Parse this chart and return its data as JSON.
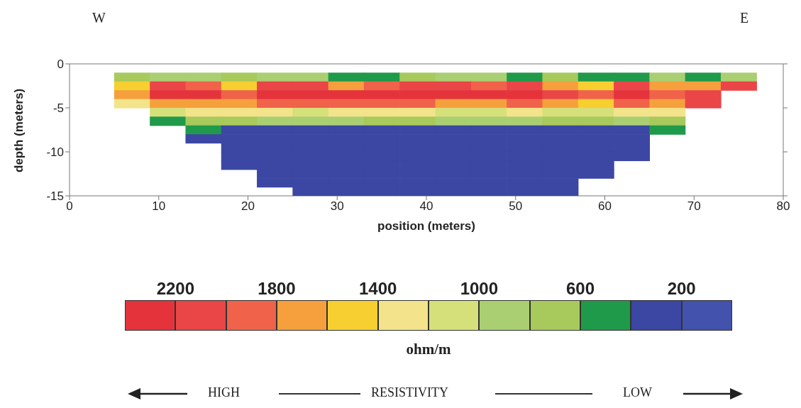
{
  "chart_data": {
    "type": "heatmap",
    "xlabel": "position (meters)",
    "ylabel": "depth (meters)",
    "clabel": "ohm/m",
    "annotations": [
      "W",
      "E",
      "HIGH",
      "RESISTIVITY",
      "LOW"
    ],
    "x": [
      7,
      11,
      15,
      19,
      23,
      27,
      31,
      35,
      39,
      43,
      47,
      51,
      55,
      59,
      63,
      67,
      71,
      75
    ],
    "y": [
      -1.5,
      -2.5,
      -3.5,
      -4.5,
      -5.5,
      -6.5,
      -7.5,
      -8.5,
      -9.5,
      -10.5,
      -11.5,
      -12.5,
      -13.5,
      -14.5
    ],
    "xlim": [
      0,
      80
    ],
    "xticks": [
      0,
      10,
      20,
      30,
      40,
      50,
      60,
      70,
      80
    ],
    "ylim": [
      -15,
      0
    ],
    "yticks": [
      0,
      -5,
      -10,
      -15
    ],
    "clim": [
      2400,
      0
    ],
    "cticks": [
      2200,
      1800,
      1400,
      1000,
      600,
      200
    ],
    "colors": [
      "#e5333c",
      "#ea4547",
      "#f0624a",
      "#f5a03c",
      "#f7cf30",
      "#f3e38a",
      "#d6e07a",
      "#a9cf72",
      "#a8c95c",
      "#1f9a4a",
      "#3b47a3",
      "#4252ad"
    ],
    "cells": [
      [
        700,
        900,
        900,
        700,
        900,
        900,
        500,
        500,
        700,
        900,
        900,
        500,
        700,
        500,
        500,
        900,
        500,
        900
      ],
      [
        1500,
        2100,
        1900,
        1500,
        2100,
        2100,
        1700,
        1900,
        2100,
        2100,
        1900,
        2100,
        1700,
        1500,
        2100,
        1700,
        1700,
        2100
      ],
      [
        1700,
        2300,
        2300,
        1900,
        2300,
        2300,
        2300,
        2300,
        2300,
        2300,
        2300,
        2300,
        2100,
        1900,
        2300,
        1900,
        2100,
        null
      ],
      [
        1300,
        1700,
        1700,
        1700,
        1900,
        1900,
        1900,
        1900,
        1900,
        1700,
        1700,
        1900,
        1700,
        1500,
        1900,
        1700,
        2100,
        null
      ],
      [
        null,
        1100,
        1300,
        1300,
        1300,
        1100,
        1300,
        1300,
        1300,
        1100,
        1100,
        1300,
        1100,
        1100,
        1300,
        1300,
        null,
        null
      ],
      [
        null,
        500,
        700,
        700,
        900,
        900,
        900,
        700,
        700,
        900,
        900,
        900,
        700,
        700,
        900,
        700,
        null,
        null
      ],
      [
        null,
        null,
        500,
        300,
        300,
        300,
        300,
        300,
        300,
        300,
        300,
        300,
        300,
        300,
        300,
        500,
        null,
        null
      ],
      [
        null,
        null,
        300,
        300,
        300,
        300,
        300,
        300,
        300,
        300,
        300,
        300,
        300,
        300,
        300,
        null,
        null,
        null
      ],
      [
        null,
        null,
        null,
        300,
        300,
        300,
        300,
        300,
        300,
        300,
        300,
        300,
        300,
        300,
        300,
        null,
        null,
        null
      ],
      [
        null,
        null,
        null,
        300,
        300,
        300,
        300,
        300,
        300,
        300,
        300,
        300,
        300,
        300,
        300,
        null,
        null,
        null
      ],
      [
        null,
        null,
        null,
        300,
        300,
        300,
        300,
        300,
        300,
        300,
        300,
        300,
        300,
        300,
        null,
        null,
        null,
        null
      ],
      [
        null,
        null,
        null,
        null,
        300,
        300,
        300,
        300,
        300,
        300,
        300,
        300,
        300,
        300,
        null,
        null,
        null,
        null
      ],
      [
        null,
        null,
        null,
        null,
        300,
        300,
        300,
        300,
        300,
        300,
        300,
        300,
        300,
        null,
        null,
        null,
        null,
        null
      ],
      [
        null,
        null,
        null,
        null,
        null,
        300,
        300,
        300,
        300,
        300,
        300,
        300,
        300,
        null,
        null,
        null,
        null,
        null
      ]
    ]
  }
}
